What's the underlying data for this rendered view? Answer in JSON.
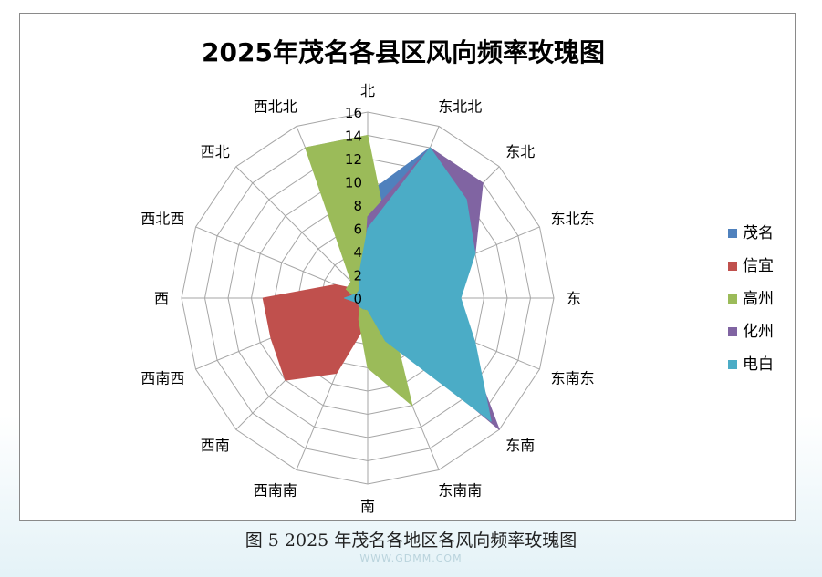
{
  "chart_data": {
    "type": "radar",
    "title": "2025年茂名各县区风向频率玫瑰图",
    "directions": [
      "北",
      "东北北",
      "东北",
      "东北东",
      "东",
      "东南东",
      "东南",
      "东南南",
      "南",
      "西南南",
      "西南",
      "西南西",
      "西",
      "西北西",
      "西北",
      "西北北"
    ],
    "radial_ticks": [
      "0",
      "2",
      "4",
      "6",
      "8",
      "10",
      "12",
      "14",
      "16"
    ],
    "rmax": 16,
    "legend_position": "right",
    "series": [
      {
        "name": "茂名",
        "color": "#4F81BD",
        "values": [
          9,
          14,
          8,
          4,
          2,
          2,
          2,
          2,
          1,
          1,
          9,
          9,
          2,
          1,
          1,
          1
        ]
      },
      {
        "name": "信宜",
        "color": "#C0504D",
        "values": [
          7,
          12,
          6,
          3,
          1,
          1,
          1,
          1,
          2,
          7,
          10,
          9,
          9,
          3,
          1,
          1
        ]
      },
      {
        "name": "高州",
        "color": "#9BBB59",
        "values": [
          14,
          5,
          2,
          2,
          2,
          2,
          3,
          10,
          6,
          2,
          1,
          1,
          1,
          2,
          2,
          14
        ]
      },
      {
        "name": "化州",
        "color": "#8064A2",
        "values": [
          7,
          14,
          14,
          10,
          6,
          9,
          16,
          3,
          1,
          1,
          1,
          1,
          1,
          1,
          1,
          1
        ]
      },
      {
        "name": "电白",
        "color": "#4BACC6",
        "values": [
          6,
          14,
          12,
          10,
          8,
          10,
          15,
          4,
          1,
          1,
          1,
          1,
          2,
          1,
          1,
          2
        ]
      }
    ]
  },
  "caption": "图 5   2025 年茂名各地区各风向频率玫瑰图",
  "watermark": "WWW.GDMM.COM"
}
